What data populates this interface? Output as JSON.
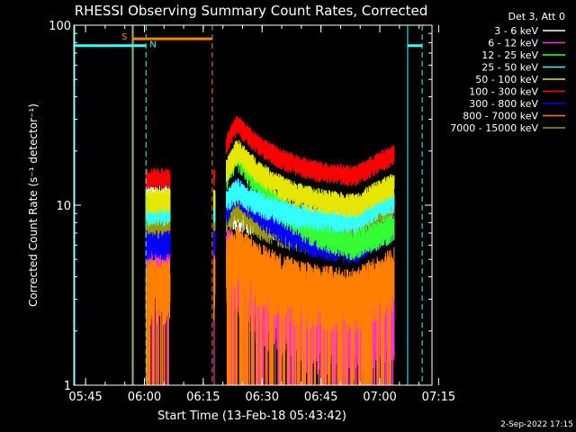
{
  "chart_data": {
    "type": "line",
    "title": "RHESSI Observing Summary Count Rates, Corrected",
    "xlabel": "Start Time (13-Feb-18 05:43:42)",
    "ylabel": "Corrected Count Rate (s⁻¹ detector⁻¹)",
    "y_scale": "log",
    "ylim": [
      1,
      100
    ],
    "y_ticks": [
      {
        "v": 1,
        "label": "1"
      },
      {
        "v": 10,
        "label": "10"
      },
      {
        "v": 100,
        "label": "100"
      }
    ],
    "x_range_min": [
      -1.7,
      89.6
    ],
    "x_ticks": [
      {
        "min": 1.3,
        "label": "05:45"
      },
      {
        "min": 16.3,
        "label": "06:00"
      },
      {
        "min": 31.3,
        "label": "06:15"
      },
      {
        "min": 46.3,
        "label": "06:30"
      },
      {
        "min": 61.3,
        "label": "06:45"
      },
      {
        "min": 76.3,
        "label": "07:00"
      },
      {
        "min": 91.3,
        "label": "07:15"
      }
    ],
    "legend_title": "Det 3, Att 0",
    "legend_position": "top-right outside",
    "grid": false,
    "series": [
      {
        "name": "3 - 6 keV",
        "color": "#ffffff",
        "level": [
          10.5,
          9.0,
          7.5
        ],
        "spread": 0.16
      },
      {
        "name": "6 - 12 keV",
        "color": "#ff33cc",
        "level": [
          6.5,
          4.0,
          1.8
        ],
        "spread": 0.35
      },
      {
        "name": "12 - 25 keV",
        "color": "#33ff33",
        "level": [
          9.5,
          19.0,
          5.5
        ],
        "spread": 0.14
      },
      {
        "name": "25 - 50 keV",
        "color": "#33ffff",
        "level": [
          9.0,
          12.0,
          8.0
        ],
        "spread": 0.12
      },
      {
        "name": "50 - 100 keV",
        "color": "#e6e600",
        "level": [
          10.5,
          20.0,
          9.5
        ],
        "spread": 0.12
      },
      {
        "name": "100 - 300 keV",
        "color": "#ff0000",
        "level": [
          14.0,
          28.0,
          14.0
        ],
        "spread": 0.1
      },
      {
        "name": "300 - 800 keV",
        "color": "#0000ff",
        "level": [
          6.0,
          12.0,
          5.5
        ],
        "spread": 0.14
      },
      {
        "name": "800 - 7000 keV",
        "color": "#ff8000",
        "level": [
          3.5,
          5.5,
          3.0
        ],
        "spread": 0.3
      },
      {
        "name": "7000 - 15000 keV",
        "color": "#999900",
        "level": [
          7.5,
          10.0,
          6.5
        ],
        "spread": 0.18
      }
    ],
    "data_windows_min": [
      [
        16.7,
        22.9
      ],
      [
        34.0,
        34.3
      ],
      [
        37.2,
        80.0
      ]
    ],
    "flare_peak_min": 40.0,
    "night_lines_min": [
      13.2,
      83.4
    ],
    "saa_start_min": 13.2,
    "saa_end_dashed_min": 33.6,
    "night_end_dashed_min": [
      16.7,
      87.1
    ],
    "saa_bar": {
      "label": "S",
      "color": "#ff8000",
      "from_min": 13.2,
      "to_min": 33.6,
      "value": 84
    },
    "night_bars": [
      {
        "label": "N",
        "color": "#33ffff",
        "from_min": -1.7,
        "to_min": 16.7,
        "value": 77
      },
      {
        "color": "#33ffff",
        "from_min": 83.4,
        "to_min": 87.1,
        "value": 77
      }
    ]
  },
  "footer_date": "2-Sep-2022 17:15"
}
